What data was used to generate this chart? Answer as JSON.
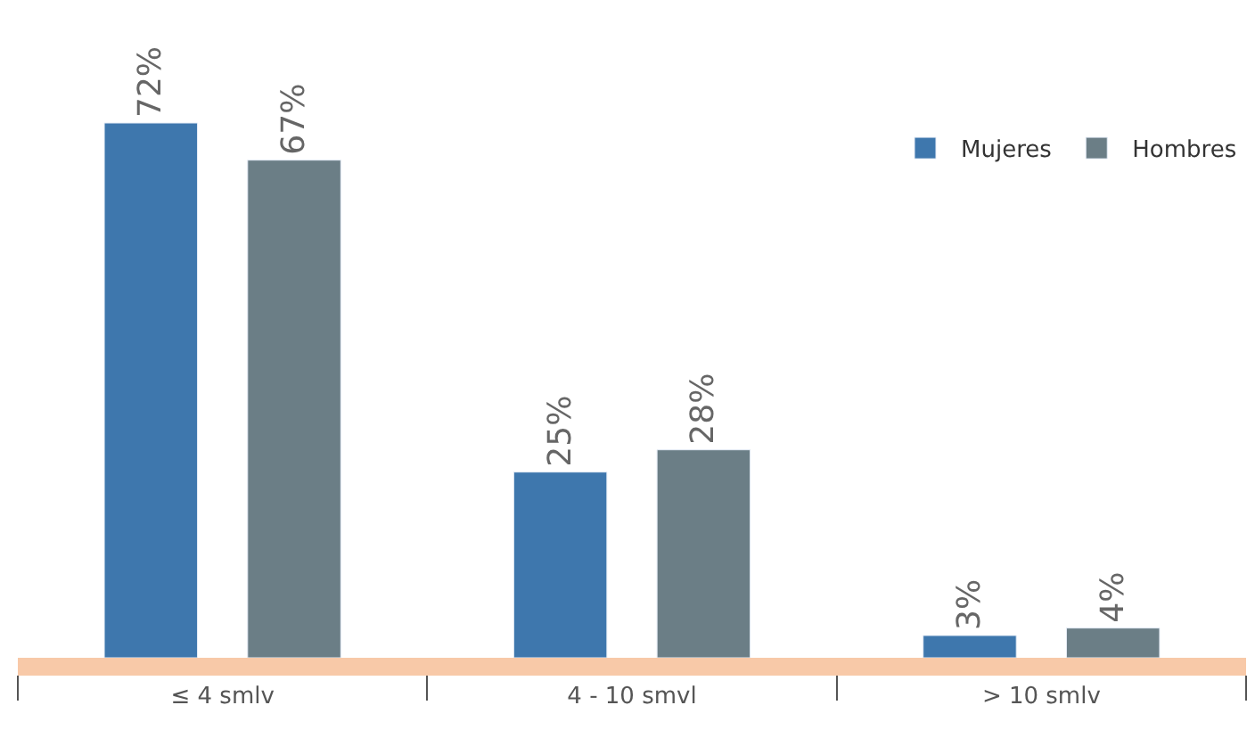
{
  "chart_data": {
    "type": "bar",
    "categories": [
      "≤ 4 smlv",
      "4 - 10 smvl",
      "> 10 smlv"
    ],
    "series": [
      {
        "name": "Mujeres",
        "color": "#3e77ad",
        "values": [
          72,
          25,
          3
        ],
        "value_labels": [
          "72%",
          "25%",
          "3%"
        ]
      },
      {
        "name": "Hombres",
        "color": "#6b7e86",
        "values": [
          67,
          28,
          4
        ],
        "value_labels": [
          "67%",
          "28%",
          "4%"
        ]
      }
    ],
    "legend": "top right",
    "tick_labels": "x"
  }
}
